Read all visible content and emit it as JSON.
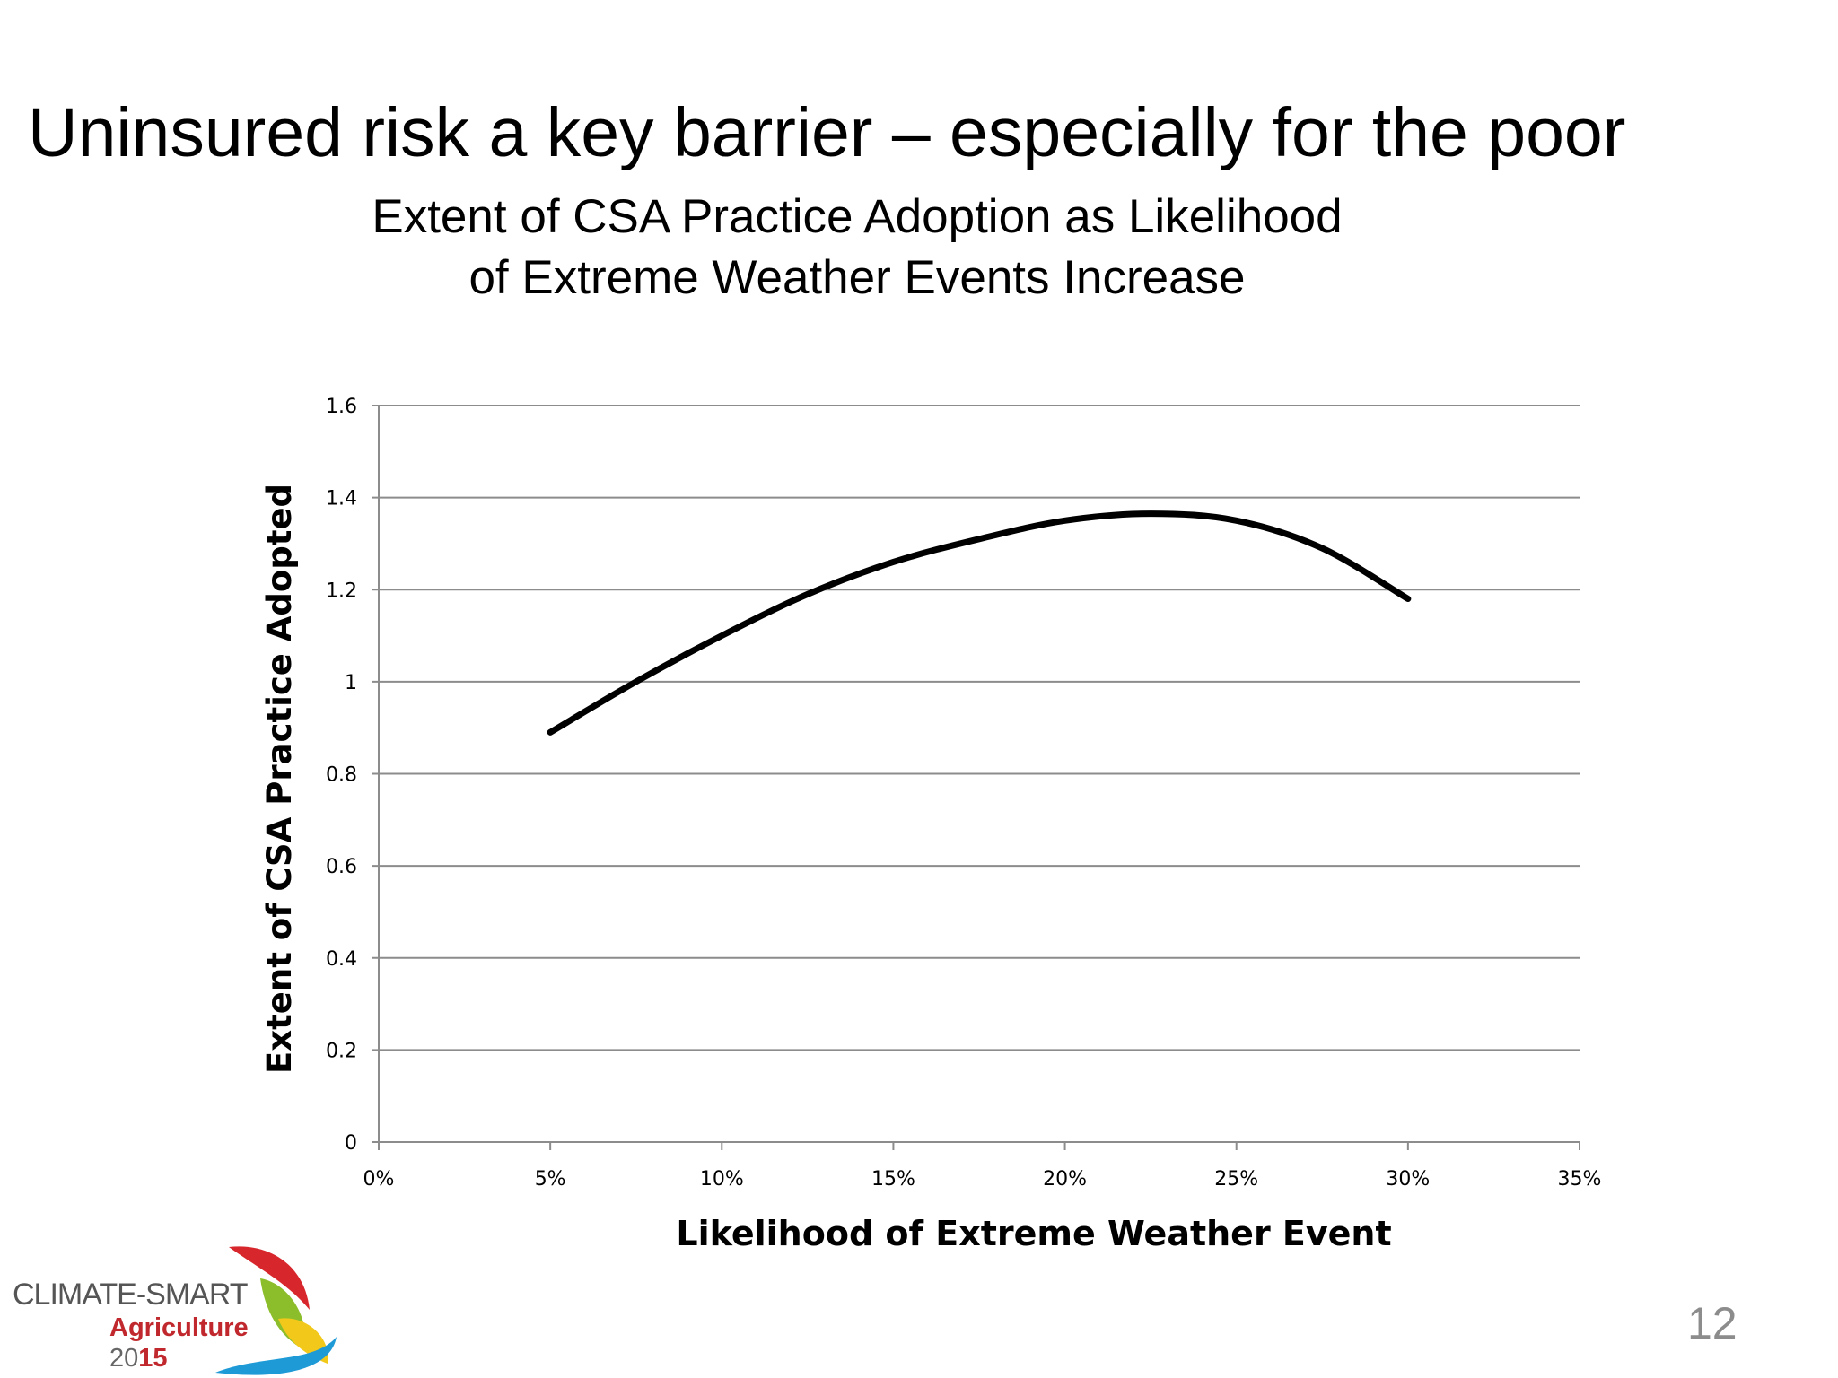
{
  "slide": {
    "title": "Uninsured risk a key barrier – especially for the poor",
    "page_number": "12"
  },
  "logo": {
    "line1": "CLIMATE-SMART",
    "line2": "Agriculture",
    "year_prefix": "20",
    "year_suffix": "15",
    "colors": {
      "red": "#d7262c",
      "green": "#8cbd2b",
      "yellow": "#f2c81a",
      "blue": "#1e9ad6"
    }
  },
  "chart_data": {
    "type": "line",
    "title_line1": "Extent of CSA Practice Adoption as Likelihood",
    "title_line2": "of Extreme Weather Events Increase",
    "xlabel": "Likelihood of Extreme Weather Event",
    "ylabel": "Extent of CSA Practice Adopted",
    "xlim": [
      0,
      0.35
    ],
    "ylim": [
      0,
      1.6
    ],
    "x_ticks": [
      "0%",
      "5%",
      "10%",
      "15%",
      "20%",
      "25%",
      "30%",
      "35%"
    ],
    "y_ticks": [
      "0",
      "0.2",
      "0.4",
      "0.6",
      "0.8",
      "1",
      "1.2",
      "1.4",
      "1.6"
    ],
    "grid": "horizontal",
    "line_color": "#000000",
    "series": [
      {
        "x": [
          0.05,
          0.075,
          0.1,
          0.125,
          0.15,
          0.175,
          0.2,
          0.225,
          0.25,
          0.275,
          0.3
        ],
        "y": [
          0.89,
          1.0,
          1.1,
          1.19,
          1.26,
          1.31,
          1.35,
          1.365,
          1.35,
          1.29,
          1.18
        ]
      }
    ]
  }
}
